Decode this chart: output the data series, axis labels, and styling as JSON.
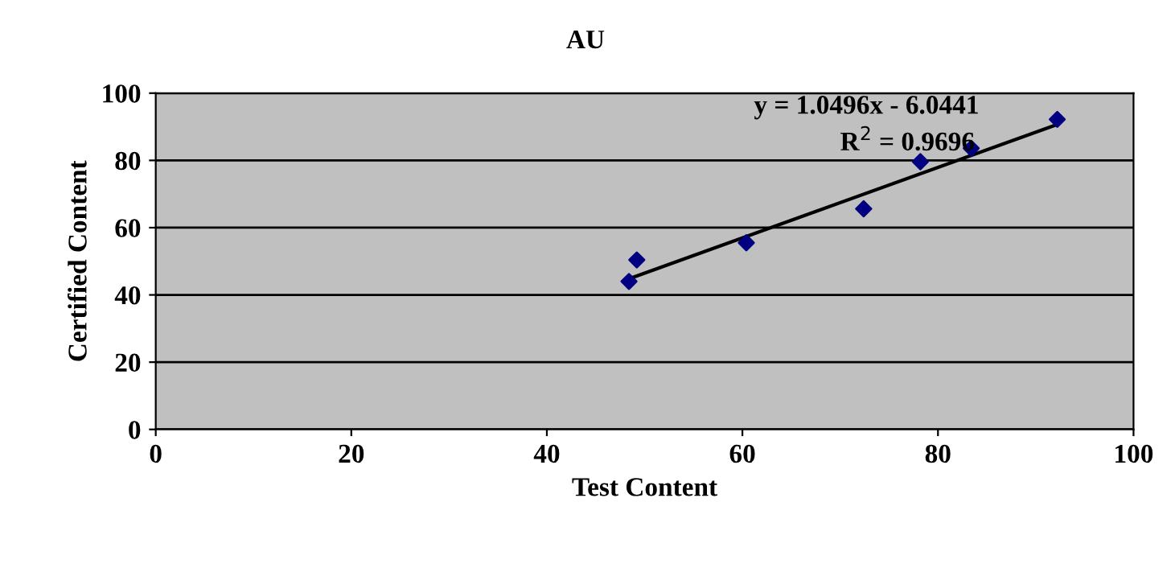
{
  "chart_data": {
    "type": "scatter",
    "title": "AU",
    "xlabel": "Test Content",
    "ylabel": "Certified Content",
    "annotations": [
      "y = 1.0496x - 6.0441",
      "R$^{2}$ = 0.9696"
    ],
    "series": [
      {
        "type": "scatter",
        "color": "#000080",
        "marker": "diamond",
        "x": [
          48.4,
          49.2,
          60.4,
          72.4,
          78.2,
          83.4,
          92.2
        ],
        "values": [
          44.0,
          50.4,
          55.5,
          65.6,
          79.6,
          83.6,
          92.2
        ]
      },
      {
        "type": "line",
        "color": "#000000",
        "marker": "none",
        "x": [
          48.4,
          92.2
        ],
        "values": [
          44.8,
          90.7
        ]
      }
    ],
    "xlim": [
      0,
      100
    ],
    "ylim": [
      0,
      100
    ],
    "xticks": [
      0,
      20,
      40,
      60,
      80,
      100
    ],
    "yticks": [
      0,
      20,
      40,
      60,
      80,
      100
    ],
    "grid": "y",
    "legend": false
  }
}
